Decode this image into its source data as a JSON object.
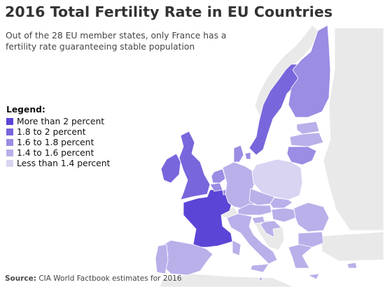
{
  "title": "2016 Total Fertility Rate in EU Countries",
  "subtitle": "Out of the 28 EU member states, only France has a fertility rate guaranteeing stable population",
  "legend": {
    "title": "Legend:",
    "items": [
      {
        "label": "More than 2 percent",
        "color": "#5b45d6"
      },
      {
        "label": "1.8 to 2 percent",
        "color": "#7866dc"
      },
      {
        "label": "1.6 to 1.8 percent",
        "color": "#9b8ce4"
      },
      {
        "label": "1.4 to 1.6 percent",
        "color": "#b9b0ea"
      },
      {
        "label": "Less than 1.4 percent",
        "color": "#d8d4f2"
      }
    ]
  },
  "source": {
    "label": "Source:",
    "text": "CIA World Factbook estimates for 2016"
  },
  "countries": [
    {
      "id": "france",
      "level": 0
    },
    {
      "id": "ireland",
      "level": 1
    },
    {
      "id": "united-kingdom",
      "level": 1
    },
    {
      "id": "sweden",
      "level": 1
    },
    {
      "id": "belgium",
      "level": 2
    },
    {
      "id": "denmark",
      "level": 2
    },
    {
      "id": "finland",
      "level": 2
    },
    {
      "id": "netherlands",
      "level": 2
    },
    {
      "id": "luxembourg",
      "level": 2
    },
    {
      "id": "lithuania",
      "level": 2
    },
    {
      "id": "latvia",
      "level": 3
    },
    {
      "id": "estonia",
      "level": 3
    },
    {
      "id": "germany",
      "level": 3
    },
    {
      "id": "czech-republic",
      "level": 3
    },
    {
      "id": "austria",
      "level": 3
    },
    {
      "id": "slovakia",
      "level": 3
    },
    {
      "id": "hungary",
      "level": 3
    },
    {
      "id": "slovenia",
      "level": 3
    },
    {
      "id": "croatia",
      "level": 3
    },
    {
      "id": "romania",
      "level": 3
    },
    {
      "id": "bulgaria",
      "level": 3
    },
    {
      "id": "italy",
      "level": 3
    },
    {
      "id": "spain",
      "level": 3
    },
    {
      "id": "portugal",
      "level": 3
    },
    {
      "id": "greece",
      "level": 3
    },
    {
      "id": "cyprus",
      "level": 3
    },
    {
      "id": "malta",
      "level": 3
    },
    {
      "id": "poland",
      "level": 4
    }
  ]
}
